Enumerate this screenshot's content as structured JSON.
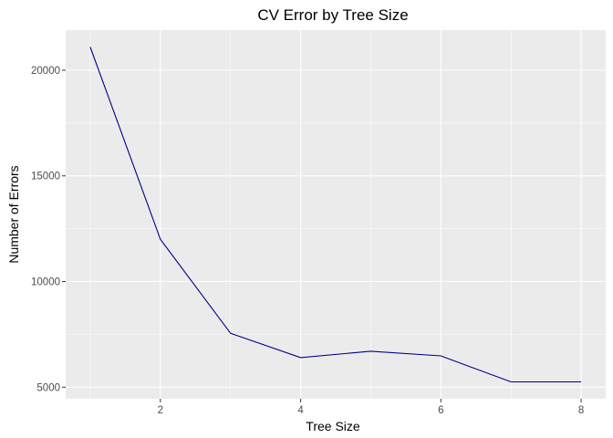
{
  "chart_data": {
    "type": "line",
    "title": "CV Error by Tree Size",
    "xlabel": "Tree Size",
    "ylabel": "Number of Errors",
    "x": [
      1,
      2,
      3,
      4,
      5,
      6,
      7,
      8
    ],
    "series": [
      {
        "values": [
          21100,
          12000,
          7550,
          6400,
          6700,
          6480,
          5250,
          5250
        ]
      }
    ],
    "xlim": [
      0.65,
      8.35
    ],
    "ylim": [
      4450,
      21900
    ],
    "xticks": [
      "2",
      "4",
      "6",
      "8"
    ],
    "yticks": [
      "5000",
      "10000",
      "15000",
      "20000"
    ],
    "grid": true,
    "legend": "none",
    "colors": {
      "line": "#00008B",
      "panel": "#EBEBEB",
      "grid": "#FFFFFF"
    }
  }
}
